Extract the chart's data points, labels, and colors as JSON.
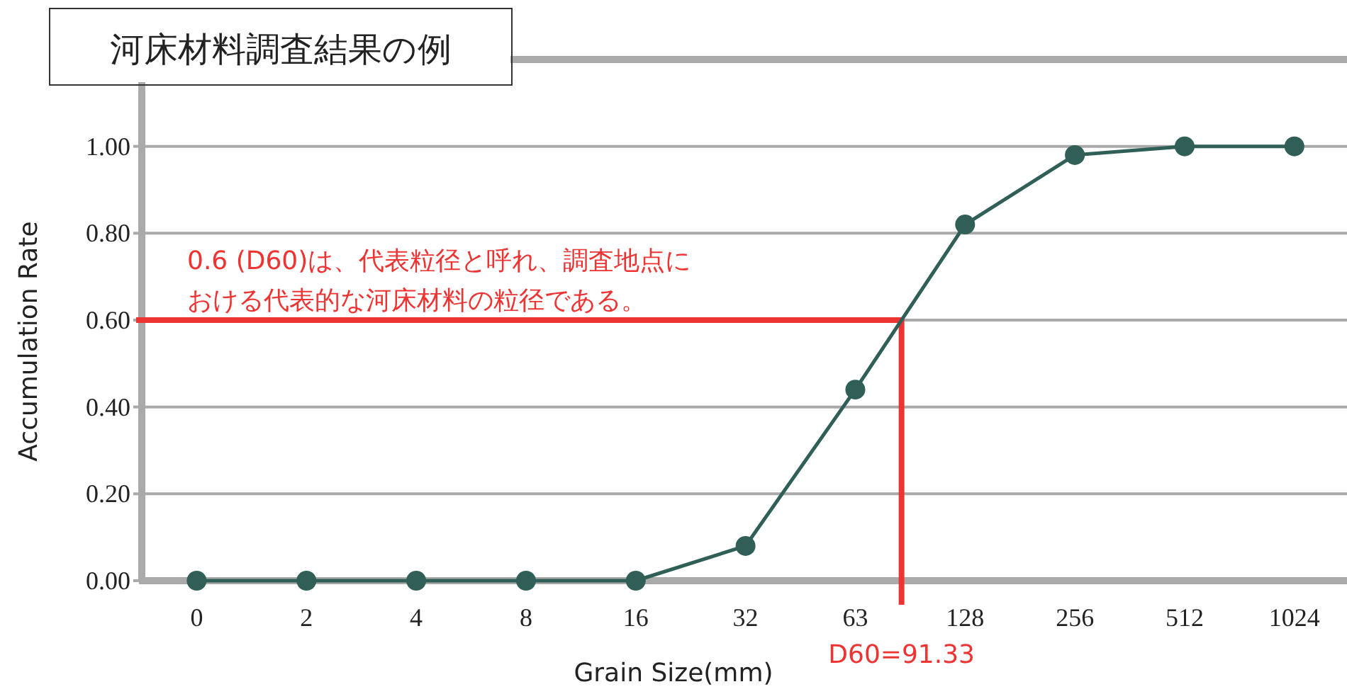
{
  "chart_data": {
    "type": "line",
    "title": "河床材料調査結果の例",
    "xlabel": "Grain Size(mm)",
    "ylabel": "Accumulation Rate",
    "categories": [
      "0",
      "2",
      "4",
      "8",
      "16",
      "32",
      "63",
      "128",
      "256",
      "512",
      "1024"
    ],
    "series": [
      {
        "color": "#2f5f57",
        "values": [
          0,
          0,
          0,
          0,
          0,
          0.08,
          0.44,
          0.82,
          0.98,
          1.0,
          1.0
        ]
      }
    ],
    "marker": "circle",
    "line_style": "solid",
    "grid": "y",
    "ylim": [
      0,
      1.2
    ],
    "yticks": [
      {
        "value": 0,
        "label": "0.00"
      },
      {
        "value": 0.2,
        "label": "0.20"
      },
      {
        "value": 0.4,
        "label": "0.40"
      },
      {
        "value": 0.6,
        "label": "0.60"
      },
      {
        "value": 0.8,
        "label": "0.80"
      },
      {
        "value": 1.0,
        "label": "1.00"
      }
    ],
    "ref_lines": [
      {
        "axis": "y",
        "value": 0.6,
        "label": null,
        "color": "#ee3333"
      }
    ],
    "annotations": [
      "0.6 (D60)は、代表粒径と呼れ、調査地点に",
      "おける代表的な河床材料の粒径である。",
      "D60=91.33"
    ]
  }
}
